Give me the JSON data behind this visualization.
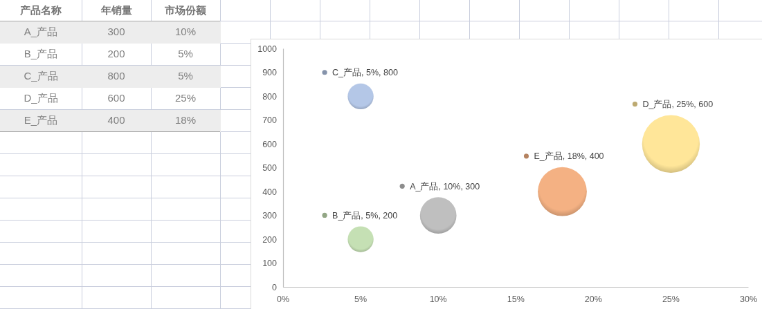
{
  "chart_data": [
    {
      "type": "other",
      "annotations": [
        "产品名称"
      ],
      "categories": [
        "A_产品",
        "B_产品",
        "C_产品",
        "D_产品",
        "E_产品"
      ],
      "series": [
        {
          "name": "年销量",
          "values": [
            300,
            200,
            800,
            600,
            400
          ],
          "value_labels": [
            "300",
            "200",
            "800",
            "600",
            "400"
          ]
        },
        {
          "name": "市场份额",
          "values": [
            10,
            5,
            5,
            25,
            18
          ],
          "value_labels": [
            "10%",
            "5%",
            "5%",
            "25%",
            "18%"
          ]
        }
      ]
    },
    {
      "type": "bubble",
      "xlim": [
        0,
        30
      ],
      "xticks": [
        {
          "value": 0,
          "label": "0%"
        },
        {
          "value": 5,
          "label": "5%"
        },
        {
          "value": 10,
          "label": "10%"
        },
        {
          "value": 15,
          "label": "15%"
        },
        {
          "value": 20,
          "label": "20%"
        },
        {
          "value": 25,
          "label": "25%"
        },
        {
          "value": 30,
          "label": "30%"
        }
      ],
      "ylim": [
        0,
        1000
      ],
      "yticks": [
        0,
        100,
        200,
        300,
        400,
        500,
        600,
        700,
        800,
        900,
        1000
      ],
      "series": [
        {
          "color": "#bfbfbf",
          "x": [
            10
          ],
          "values": [
            300
          ],
          "sizes": [
            0.4
          ],
          "value_labels": [
            "A_产品, 10%, 300"
          ]
        },
        {
          "color": "#c5e0b4",
          "x": [
            5
          ],
          "values": [
            200
          ],
          "sizes": [
            0.2
          ],
          "value_labels": [
            "B_产品, 5%, 200"
          ]
        },
        {
          "color": "#b4c7e7",
          "x": [
            5
          ],
          "values": [
            800
          ],
          "sizes": [
            0.2
          ],
          "value_labels": [
            "C_产品, 5%, 800"
          ]
        },
        {
          "color": "#ffe699",
          "x": [
            25
          ],
          "values": [
            600
          ],
          "sizes": [
            1
          ],
          "value_labels": [
            "D_产品, 25%, 600"
          ]
        },
        {
          "color": "#f4b183",
          "x": [
            18
          ],
          "values": [
            400
          ],
          "sizes": [
            0.72
          ],
          "value_labels": [
            "E_产品, 18%, 400"
          ]
        }
      ]
    }
  ]
}
